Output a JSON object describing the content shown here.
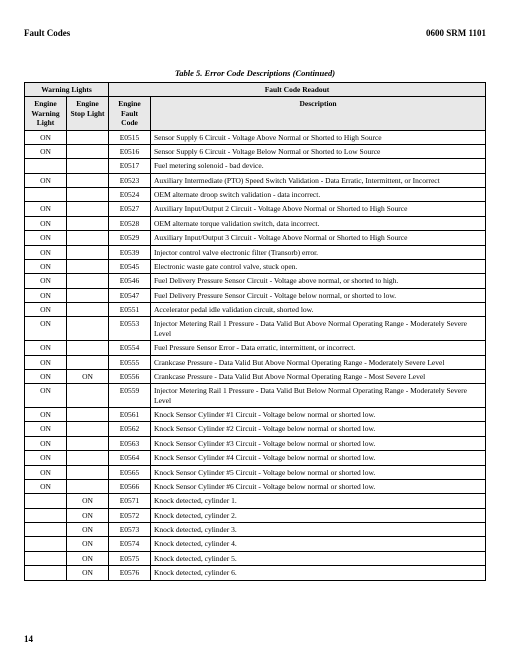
{
  "header": {
    "left": "Fault Codes",
    "right": "0600 SRM 1101"
  },
  "caption": "Table 5. Error Code Descriptions (Continued)",
  "columns": {
    "group1": "Warning Lights",
    "group2": "Fault Code Readout",
    "ewl": "Engine Warning Light",
    "esl": "Engine Stop Light",
    "efc": "Engine Fault Code",
    "desc": "Description"
  },
  "rows": [
    {
      "ewl": "ON",
      "esl": "",
      "efc": "E0515",
      "desc": "Sensor Supply 6 Circuit - Voltage Above Normal or Shorted to High Source"
    },
    {
      "ewl": "ON",
      "esl": "",
      "efc": "E0516",
      "desc": "Sensor Supply 6 Circuit - Voltage Below Normal or Shorted to Low Source"
    },
    {
      "ewl": "",
      "esl": "",
      "efc": "E0517",
      "desc": "Fuel metering solenoid - bad device."
    },
    {
      "ewl": "ON",
      "esl": "",
      "efc": "E0523",
      "desc": "Auxiliary Intermediate (PTO) Speed Switch Validation - Data Erratic, Intermittent, or Incorrect"
    },
    {
      "ewl": "",
      "esl": "",
      "efc": "E0524",
      "desc": "OEM alternate droop switch validation - data incorrect."
    },
    {
      "ewl": "ON",
      "esl": "",
      "efc": "E0527",
      "desc": "Auxiliary Input/Output 2 Circuit - Voltage Above Normal or Shorted to High Source"
    },
    {
      "ewl": "ON",
      "esl": "",
      "efc": "E0528",
      "desc": "OEM alternate torque validation switch, data incorrect."
    },
    {
      "ewl": "ON",
      "esl": "",
      "efc": "E0529",
      "desc": "Auxiliary Input/Output 3 Circuit - Voltage Above Normal or Shorted to High Source"
    },
    {
      "ewl": "ON",
      "esl": "",
      "efc": "E0539",
      "desc": "Injector control valve electronic filter (Transorb) error."
    },
    {
      "ewl": "ON",
      "esl": "",
      "efc": "E0545",
      "desc": "Electronic waste gate control valve, stuck open."
    },
    {
      "ewl": "ON",
      "esl": "",
      "efc": "E0546",
      "desc": "Fuel Delivery Pressure Sensor Circuit - Voltage above normal, or shorted to high."
    },
    {
      "ewl": "ON",
      "esl": "",
      "efc": "E0547",
      "desc": "Fuel Delivery Pressure Sensor Circuit - Voltage below normal, or shorted to low."
    },
    {
      "ewl": "ON",
      "esl": "",
      "efc": "E0551",
      "desc": "Accelerator pedal idle validation circuit, shorted low."
    },
    {
      "ewl": "ON",
      "esl": "",
      "efc": "E0553",
      "desc": "Injector Metering Rail 1 Pressure - Data Valid But Above Normal Operating Range - Moderately Severe Level"
    },
    {
      "ewl": "ON",
      "esl": "",
      "efc": "E0554",
      "desc": "Fuel Pressure Sensor Error - Data erratic, intermittent, or incorrect."
    },
    {
      "ewl": "ON",
      "esl": "",
      "efc": "E0555",
      "desc": "Crankcase Pressure - Data Valid But Above Normal Operating Range - Moderately Severe Level"
    },
    {
      "ewl": "ON",
      "esl": "ON",
      "efc": "E0556",
      "desc": "Crankcase Pressure - Data Valid But Above Normal Operating Range - Most Severe Level"
    },
    {
      "ewl": "ON",
      "esl": "",
      "efc": "E0559",
      "desc": "Injector Metering Rail 1 Pressure - Data Valid But Below Normal Operating Range - Moderately Severe Level"
    },
    {
      "ewl": "ON",
      "esl": "",
      "efc": "E0561",
      "desc": "Knock Sensor Cylinder #1 Circuit - Voltage below normal or shorted low."
    },
    {
      "ewl": "ON",
      "esl": "",
      "efc": "E0562",
      "desc": "Knock Sensor Cylinder #2 Circuit - Voltage below normal or shorted low."
    },
    {
      "ewl": "ON",
      "esl": "",
      "efc": "E0563",
      "desc": "Knock Sensor Cylinder #3 Circuit - Voltage below normal or shorted low."
    },
    {
      "ewl": "ON",
      "esl": "",
      "efc": "E0564",
      "desc": "Knock Sensor Cylinder #4 Circuit - Voltage below normal or shorted low."
    },
    {
      "ewl": "ON",
      "esl": "",
      "efc": "E0565",
      "desc": "Knock Sensor Cylinder #5 Circuit - Voltage below normal or shorted low."
    },
    {
      "ewl": "ON",
      "esl": "",
      "efc": "E0566",
      "desc": "Knock Sensor Cylinder #6 Circuit - Voltage below normal or shorted low."
    },
    {
      "ewl": "",
      "esl": "ON",
      "efc": "E0571",
      "desc": "Knock detected, cylinder 1."
    },
    {
      "ewl": "",
      "esl": "ON",
      "efc": "E0572",
      "desc": "Knock detected, cylinder 2."
    },
    {
      "ewl": "",
      "esl": "ON",
      "efc": "E0573",
      "desc": "Knock detected, cylinder 3."
    },
    {
      "ewl": "",
      "esl": "ON",
      "efc": "E0574",
      "desc": "Knock detected, cylinder 4."
    },
    {
      "ewl": "",
      "esl": "ON",
      "efc": "E0575",
      "desc": "Knock detected, cylinder 5."
    },
    {
      "ewl": "",
      "esl": "ON",
      "efc": "E0576",
      "desc": "Knock detected, cylinder 6."
    }
  ],
  "pageNum": "14"
}
